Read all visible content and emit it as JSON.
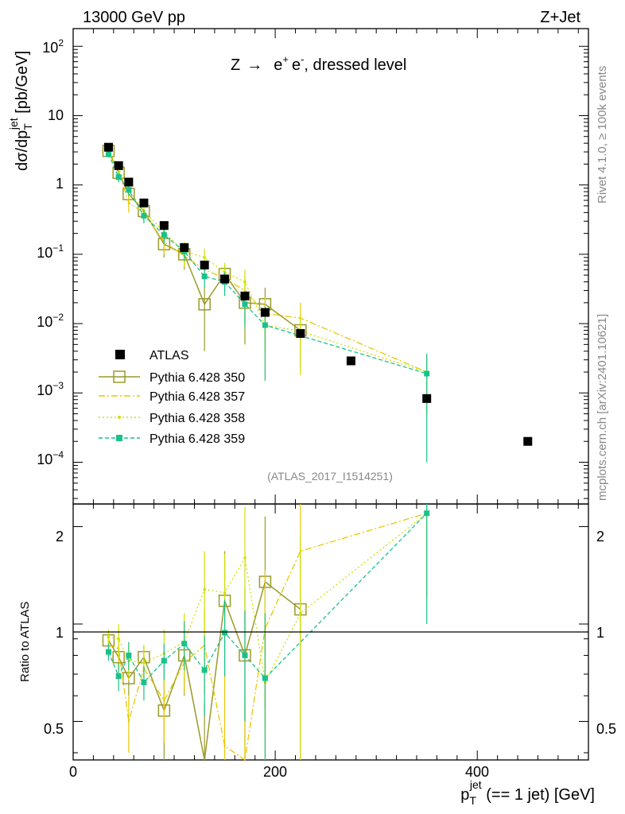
{
  "header": {
    "left": "13000 GeV pp",
    "right": "Z+Jet"
  },
  "process": {
    "prefix": "Z",
    "arrow": "→",
    "lepton": "e",
    "plus": "+",
    "minus": "-",
    "suffix": ", dressed level"
  },
  "side_labels": {
    "rivet": "Rivet 4.1.0, ≥ 100k events",
    "mcplots": "mcplots.cern.ch [arXiv:2401.10621]"
  },
  "analysis_id": "(ATLAS_2017_I1514251)",
  "axes": {
    "ylabel_top": {
      "d": "dσ/dp",
      "sub": "T",
      "sup": "jet",
      "unit": " [pb/GeV]"
    },
    "ylabel_bottom": "Ratio to ATLAS",
    "xlabel": {
      "p": "p",
      "sub": "T",
      "sup": "jet",
      "rest": " (== 1 jet) [GeV]"
    },
    "xticks": [
      "0",
      "200",
      "400"
    ],
    "ytick_main": {
      "e2": "10",
      "e2_exp": "2",
      "e1": "10",
      "e0": "1",
      "em1": "10",
      "em1_exp": "−1",
      "em2": "10",
      "em2_exp": "−2",
      "em3": "10",
      "em3_exp": "−3",
      "em4": "10",
      "em4_exp": "−4"
    },
    "ytick_ratio": [
      "0.5",
      "1",
      "2"
    ]
  },
  "legend": [
    {
      "label": "ATLAS",
      "style": "square-black"
    },
    {
      "label": "Pythia 6.428 350",
      "style": "open-square-solid"
    },
    {
      "label": "Pythia 6.428 357",
      "style": "dashdot"
    },
    {
      "label": "Pythia 6.428 358",
      "style": "dotted"
    },
    {
      "label": "Pythia 6.428 359",
      "style": "dashed-square"
    }
  ],
  "chart_data": {
    "type": "line",
    "title": "Z → e+ e-, dressed level",
    "xlabel": "pT jet (== 1 jet) [GeV]",
    "ylabel": "dσ/dpT jet [pb/GeV]",
    "ratio_ylabel": "Ratio to ATLAS",
    "xlim": [
      0,
      510
    ],
    "ylim": [
      2.5e-05,
      180
    ],
    "yscale": "log",
    "ratio_ylim": [
      0.38,
      2.35
    ],
    "ratio_yscale": "log",
    "colors": {
      "data": "#000000",
      "p350": "#9a9a2a",
      "p357": "#e8c800",
      "p358": "#cfe000",
      "p359": "#19c28a"
    },
    "atlas": {
      "x": [
        35,
        45,
        55,
        70,
        90,
        110,
        130,
        150,
        170,
        190,
        225,
        275,
        350,
        450
      ],
      "y": [
        3.5,
        1.9,
        1.1,
        0.55,
        0.26,
        0.125,
        0.07,
        0.044,
        0.025,
        0.0145,
        0.0072,
        0.0029,
        0.00083,
        0.0002
      ]
    },
    "series": [
      {
        "name": "Pythia 6.428 350",
        "key": "p350",
        "x": [
          35,
          45,
          55,
          70,
          90,
          110,
          130,
          150,
          170,
          190,
          225
        ],
        "y": [
          3.1,
          1.5,
          0.74,
          0.42,
          0.14,
          0.1,
          0.019,
          0.052,
          0.02,
          0.019,
          0.008
        ],
        "err": [
          0.4,
          0.25,
          0.2,
          0.12,
          0.05,
          0.04,
          0.015,
          0.02,
          0.015,
          0.014,
          0.0057
        ],
        "ratio": [
          0.89,
          0.79,
          0.68,
          0.79,
          0.54,
          0.8,
          0.27,
          1.18,
          0.8,
          1.35,
          1.11
        ],
        "ratio_err": [
          0.05,
          0.07,
          0.08,
          0.07,
          0.2,
          0.2,
          0.3,
          0.5,
          0.5,
          0.8,
          0.75
        ]
      },
      {
        "name": "Pythia 6.428 357",
        "key": "p357",
        "x": [
          35,
          45,
          55,
          70,
          90,
          110,
          130,
          150,
          170,
          190,
          225,
          350
        ],
        "y": [
          3.0,
          1.6,
          0.55,
          0.4,
          0.15,
          0.095,
          0.06,
          0.045,
          0.03,
          0.014,
          0.012,
          0.002
        ],
        "err": [
          0.4,
          0.3,
          0.15,
          0.1,
          0.05,
          0.03,
          0.02,
          0.02,
          0.02,
          0.01,
          0.008,
          0.0015
        ],
        "ratio": [
          0.86,
          0.84,
          0.5,
          0.73,
          0.58,
          0.76,
          0.86,
          0.42,
          0.3,
          0.97,
          1.68,
          2.2
        ],
        "ratio_err": [
          0.05,
          0.12,
          0.1,
          0.1,
          0.15,
          0.15,
          0.25,
          0.3,
          0.3,
          0.5,
          0.8,
          1.0
        ]
      },
      {
        "name": "Pythia 6.428 358",
        "key": "p358",
        "x": [
          35,
          45,
          55,
          70,
          90,
          110,
          130,
          150,
          170,
          190,
          225,
          350
        ],
        "y": [
          3.2,
          1.7,
          0.85,
          0.42,
          0.21,
          0.11,
          0.09,
          0.055,
          0.04,
          0.0095,
          0.0078,
          0.002
        ],
        "err": [
          0.35,
          0.25,
          0.2,
          0.1,
          0.06,
          0.04,
          0.03,
          0.02,
          0.02,
          0.008,
          0.006,
          0.0015
        ],
        "ratio": [
          0.91,
          0.9,
          0.77,
          0.76,
          0.81,
          0.88,
          1.28,
          1.25,
          1.6,
          0.66,
          1.08,
          2.2
        ],
        "ratio_err": [
          0.05,
          0.1,
          0.1,
          0.1,
          0.15,
          0.2,
          0.4,
          0.4,
          0.7,
          0.5,
          0.8,
          1.0
        ]
      },
      {
        "name": "Pythia 6.428 359",
        "key": "p359",
        "x": [
          35,
          45,
          55,
          70,
          90,
          110,
          130,
          150,
          170,
          190,
          350
        ],
        "y": [
          2.8,
          1.3,
          0.85,
          0.36,
          0.19,
          0.11,
          0.048,
          0.04,
          0.019,
          0.0095,
          0.0019
        ],
        "err": [
          0.3,
          0.2,
          0.15,
          0.08,
          0.05,
          0.03,
          0.015,
          0.015,
          0.01,
          0.008,
          0.0018
        ],
        "ratio": [
          0.82,
          0.69,
          0.8,
          0.66,
          0.77,
          0.87,
          0.72,
          0.94,
          0.8,
          0.68,
          2.2
        ],
        "ratio_err": [
          0.05,
          0.07,
          0.08,
          0.08,
          0.1,
          0.15,
          0.2,
          0.25,
          0.3,
          0.4,
          1.2
        ]
      }
    ]
  }
}
